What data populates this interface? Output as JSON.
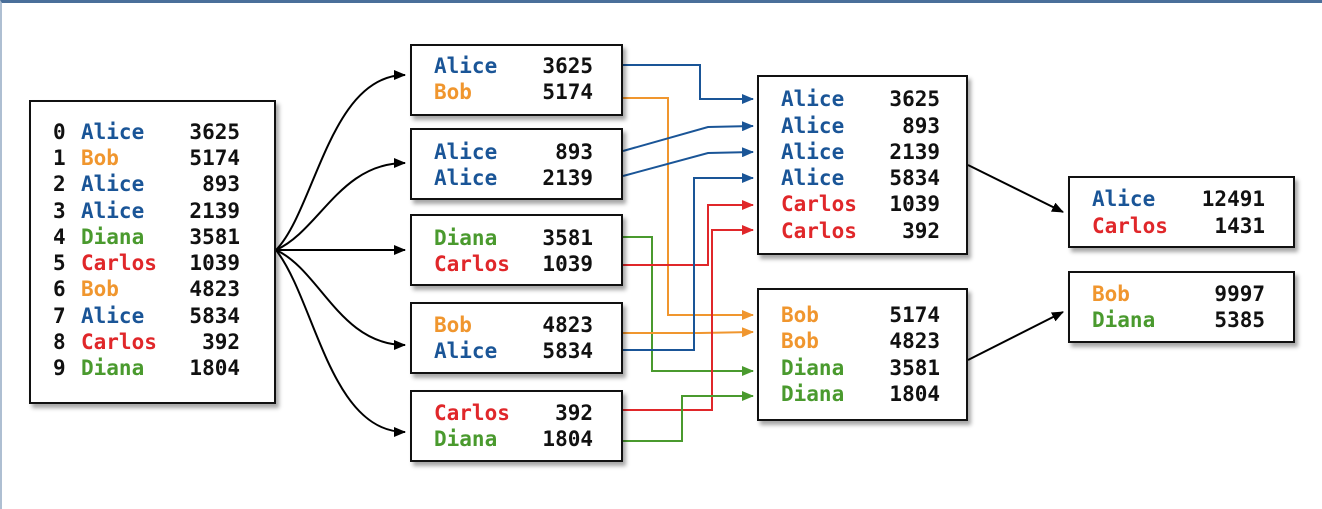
{
  "colors": {
    "Alice": "#1a5597",
    "Bob": "#f0962e",
    "Carlos": "#e0272a",
    "Diana": "#4a9a2e",
    "arrow": "#000000"
  },
  "input": {
    "rows": [
      {
        "index": "0",
        "name": "Alice",
        "value": "3625"
      },
      {
        "index": "1",
        "name": "Bob",
        "value": "5174"
      },
      {
        "index": "2",
        "name": "Alice",
        "value": "893"
      },
      {
        "index": "3",
        "name": "Alice",
        "value": "2139"
      },
      {
        "index": "4",
        "name": "Diana",
        "value": "3581"
      },
      {
        "index": "5",
        "name": "Carlos",
        "value": "1039"
      },
      {
        "index": "6",
        "name": "Bob",
        "value": "4823"
      },
      {
        "index": "7",
        "name": "Alice",
        "value": "5834"
      },
      {
        "index": "8",
        "name": "Carlos",
        "value": "392"
      },
      {
        "index": "9",
        "name": "Diana",
        "value": "1804"
      }
    ]
  },
  "splits": [
    {
      "rows": [
        {
          "name": "Alice",
          "value": "3625"
        },
        {
          "name": "Bob",
          "value": "5174"
        }
      ]
    },
    {
      "rows": [
        {
          "name": "Alice",
          "value": "893"
        },
        {
          "name": "Alice",
          "value": "2139"
        }
      ]
    },
    {
      "rows": [
        {
          "name": "Diana",
          "value": "3581"
        },
        {
          "name": "Carlos",
          "value": "1039"
        }
      ]
    },
    {
      "rows": [
        {
          "name": "Bob",
          "value": "4823"
        },
        {
          "name": "Alice",
          "value": "5834"
        }
      ]
    },
    {
      "rows": [
        {
          "name": "Carlos",
          "value": "392"
        },
        {
          "name": "Diana",
          "value": "1804"
        }
      ]
    }
  ],
  "groups": [
    {
      "rows": [
        {
          "name": "Alice",
          "value": "3625"
        },
        {
          "name": "Alice",
          "value": "893"
        },
        {
          "name": "Alice",
          "value": "2139"
        },
        {
          "name": "Alice",
          "value": "5834"
        },
        {
          "name": "Carlos",
          "value": "1039"
        },
        {
          "name": "Carlos",
          "value": "392"
        }
      ]
    },
    {
      "rows": [
        {
          "name": "Bob",
          "value": "5174"
        },
        {
          "name": "Bob",
          "value": "4823"
        },
        {
          "name": "Diana",
          "value": "3581"
        },
        {
          "name": "Diana",
          "value": "1804"
        }
      ]
    }
  ],
  "results": [
    {
      "rows": [
        {
          "name": "Alice",
          "value": "12491"
        },
        {
          "name": "Carlos",
          "value": "1431"
        }
      ]
    },
    {
      "rows": [
        {
          "name": "Bob",
          "value": "9997"
        },
        {
          "name": "Diana",
          "value": "5385"
        }
      ]
    }
  ]
}
